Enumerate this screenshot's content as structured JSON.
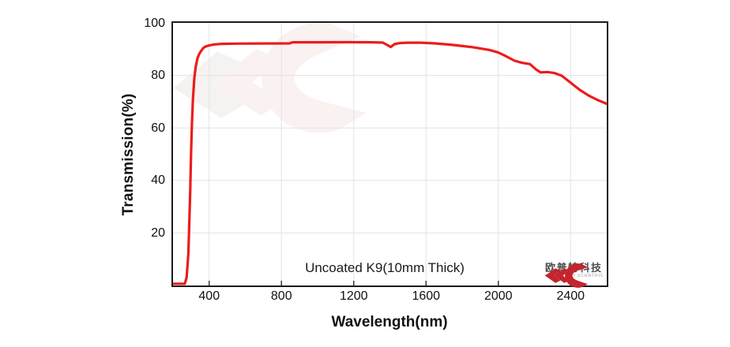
{
  "chart_data": {
    "type": "line",
    "title": "",
    "xlabel": "Wavelength(nm)",
    "ylabel": "Transmission(%)",
    "xlim": [
      200,
      2600
    ],
    "ylim": [
      0,
      100
    ],
    "x_ticks": [
      400,
      800,
      1200,
      1600,
      2000,
      2400
    ],
    "x_tick_labels": [
      "400",
      "800",
      "1200",
      "1600",
      "2000",
      "2400"
    ],
    "y_ticks": [
      20,
      40,
      60,
      80,
      100
    ],
    "y_tick_labels": [
      "20",
      "40",
      "60",
      "80",
      "100"
    ],
    "grid": true,
    "legend_position": "none",
    "annotation": "Uncoated K9(10mm Thick)",
    "series": [
      {
        "name": "Uncoated K9 (10mm Thick) transmission",
        "color": "#ec1c1c",
        "points": [
          [
            200,
            0
          ],
          [
            240,
            0
          ],
          [
            255,
            0
          ],
          [
            265,
            0.5
          ],
          [
            275,
            3
          ],
          [
            285,
            12
          ],
          [
            295,
            35
          ],
          [
            300,
            51
          ],
          [
            305,
            62
          ],
          [
            310,
            71
          ],
          [
            318,
            79
          ],
          [
            325,
            83
          ],
          [
            335,
            86.5
          ],
          [
            345,
            88.2
          ],
          [
            355,
            89.3
          ],
          [
            370,
            90.6
          ],
          [
            385,
            91.1
          ],
          [
            400,
            91.4
          ],
          [
            430,
            91.8
          ],
          [
            470,
            92.0
          ],
          [
            550,
            92.1
          ],
          [
            700,
            92.15
          ],
          [
            845,
            92.2
          ],
          [
            862,
            92.6
          ],
          [
            1000,
            92.6
          ],
          [
            1150,
            92.65
          ],
          [
            1300,
            92.6
          ],
          [
            1360,
            92.5
          ],
          [
            1385,
            91.6
          ],
          [
            1405,
            90.8
          ],
          [
            1425,
            91.9
          ],
          [
            1455,
            92.3
          ],
          [
            1500,
            92.45
          ],
          [
            1570,
            92.45
          ],
          [
            1650,
            92.2
          ],
          [
            1750,
            91.6
          ],
          [
            1850,
            90.8
          ],
          [
            1950,
            89.7
          ],
          [
            2000,
            88.7
          ],
          [
            2040,
            87.4
          ],
          [
            2090,
            85.6
          ],
          [
            2130,
            84.8
          ],
          [
            2175,
            84.3
          ],
          [
            2210,
            82.2
          ],
          [
            2235,
            81.1
          ],
          [
            2270,
            81.3
          ],
          [
            2310,
            80.9
          ],
          [
            2350,
            79.9
          ],
          [
            2400,
            77.2
          ],
          [
            2450,
            74.5
          ],
          [
            2500,
            72.3
          ],
          [
            2550,
            70.6
          ],
          [
            2600,
            69.2
          ]
        ]
      }
    ]
  },
  "axes": {
    "y_label": "Transmission(%)",
    "x_label": "Wavelength(nm)"
  },
  "annotation": {
    "text": "Uncoated K9(10mm Thick)"
  },
  "logo": {
    "cn_text": "欧普特科技",
    "en_text": "GOLDEN WAY SCIENTIFIC"
  },
  "colors": {
    "curve": "#ec1c1c",
    "grid": "#e3e3e3",
    "axis": "#1a1a1a",
    "tick": "#3a3a3a",
    "logo_red": "#c5242e",
    "watermark_pink": "#f6e7e7",
    "watermark_gray": "#edeae9"
  }
}
